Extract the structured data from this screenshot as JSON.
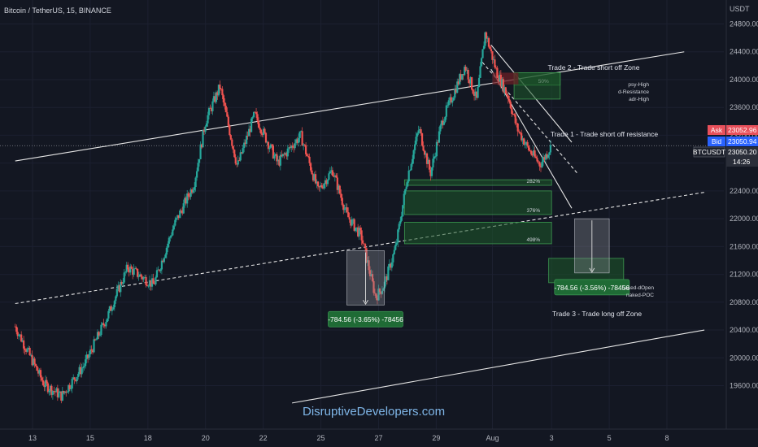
{
  "header": {
    "title": "Bitcoin / TetherUS, 15, BINANCE"
  },
  "watermark": "DisruptiveDevelopers.com",
  "colors": {
    "background": "#131722",
    "up": "#26a69a",
    "down": "#ef5350",
    "zone": "#1e5a2a",
    "zone_border": "#3d9950",
    "measure_green": "#1f6b35"
  },
  "chart_data": {
    "type": "candlestick",
    "symbol": "BTCUSDT",
    "interval": "15",
    "exchange": "BINANCE",
    "y_axis": {
      "unit_label": "USDT",
      "ticks": [
        19600,
        20000,
        20400,
        20800,
        21200,
        21600,
        22000,
        22400,
        22800,
        23200,
        23600,
        24000,
        24400,
        24800
      ],
      "tick_labels": [
        "19600.00",
        "20000.00",
        "20400.00",
        "20800.00",
        "21200.00",
        "21600.00",
        "22000.00",
        "22400.00",
        "22800.00",
        "23200.00",
        "23600.00",
        "24000.00",
        "24400.00",
        "24800.00"
      ],
      "range": [
        19350,
        25000
      ]
    },
    "x_axis": {
      "labels": [
        "13",
        "15",
        "18",
        "20",
        "22",
        "25",
        "27",
        "29",
        "Aug",
        "3",
        "5",
        "8"
      ],
      "label_days": [
        13,
        15,
        17,
        19,
        21,
        23,
        25,
        27,
        28.95,
        31,
        33,
        35
      ],
      "range": [
        12.4,
        36.3
      ]
    },
    "price_series": {
      "days": [
        12.4,
        13.4,
        14.0,
        14.8,
        15.6,
        16.3,
        17.2,
        17.9,
        18.6,
        19.0,
        19.5,
        20.1,
        20.7,
        21.5,
        22.3,
        22.9,
        23.4,
        23.9,
        24.4,
        24.9,
        25.2,
        25.6,
        26.0,
        26.4,
        26.8,
        27.2,
        27.6,
        28.0,
        28.4,
        28.7,
        29.1,
        29.5,
        29.8,
        30.2,
        30.6,
        31.0
      ],
      "prices": [
        20450,
        19620,
        19450,
        19900,
        20600,
        21300,
        21050,
        21900,
        22500,
        23400,
        23900,
        22750,
        23500,
        22800,
        23200,
        22400,
        22700,
        22050,
        21750,
        20870,
        21050,
        21600,
        22600,
        23300,
        22650,
        23400,
        23800,
        24200,
        23700,
        24680,
        24100,
        23750,
        23300,
        23000,
        22780,
        23050
      ]
    },
    "last_price": {
      "symbol": "BTCUSDT",
      "price": "23050.20",
      "countdown": "14:26"
    },
    "ask": {
      "label": "Ask",
      "value": "23052.96"
    },
    "bid": {
      "label": "Bid",
      "value": "23050.94"
    },
    "annotations": [
      {
        "text": "Trade 2 - Trade short off Zone"
      },
      {
        "text": "Trade 1 - Trade short off resistance"
      },
      {
        "text": "Trade 3 - Trade long off Zone"
      },
      {
        "text": "psy-High"
      },
      {
        "text": "d-Resistance"
      },
      {
        "text": "adr-High"
      },
      {
        "text": "naked-dOpen"
      },
      {
        "text": "naked-POC"
      }
    ],
    "zones": [
      {
        "label": "50%",
        "from_day": 29.7,
        "to_day": 31.3,
        "low": 23920,
        "high": 24100
      },
      {
        "label": "",
        "from_day": 29.7,
        "to_day": 31.3,
        "low": 23720,
        "high": 24100
      },
      {
        "label": "282%",
        "from_day": 25.9,
        "to_day": 31.0,
        "low": 22480,
        "high": 22560
      },
      {
        "label": "376%",
        "from_day": 25.9,
        "to_day": 31.0,
        "low": 22060,
        "high": 22400
      },
      {
        "label": "498%",
        "from_day": 25.9,
        "to_day": 31.0,
        "low": 21640,
        "high": 21950
      },
      {
        "label": "",
        "from_day": 30.9,
        "to_day": 33.5,
        "low": 21080,
        "high": 21430
      }
    ],
    "measures": [
      {
        "text": "-784.56 (-3.65%) -78456",
        "from_day": 23.9,
        "to_day": 25.2,
        "start": 21540,
        "end": 20760
      },
      {
        "text": "-784.56 (-3.56%) -78456",
        "from_day": 31.8,
        "to_day": 33.0,
        "start": 22000,
        "end": 21220
      }
    ],
    "lines": [
      {
        "style": "solid",
        "from": [
          12.4,
          22830
        ],
        "to": [
          35.6,
          24400
        ]
      },
      {
        "style": "dashed",
        "from": [
          12.4,
          20780
        ],
        "to": [
          36.3,
          22380
        ]
      },
      {
        "style": "solid",
        "from": [
          22.0,
          19350
        ],
        "to": [
          36.3,
          20400
        ]
      },
      {
        "style": "solid",
        "from": [
          28.9,
          24500
        ],
        "to": [
          31.7,
          23100
        ]
      },
      {
        "style": "solid",
        "from": [
          28.9,
          24150
        ],
        "to": [
          31.7,
          22150
        ]
      },
      {
        "style": "dashed",
        "from": [
          28.6,
          24250
        ],
        "to": [
          31.9,
          22650
        ]
      }
    ]
  }
}
